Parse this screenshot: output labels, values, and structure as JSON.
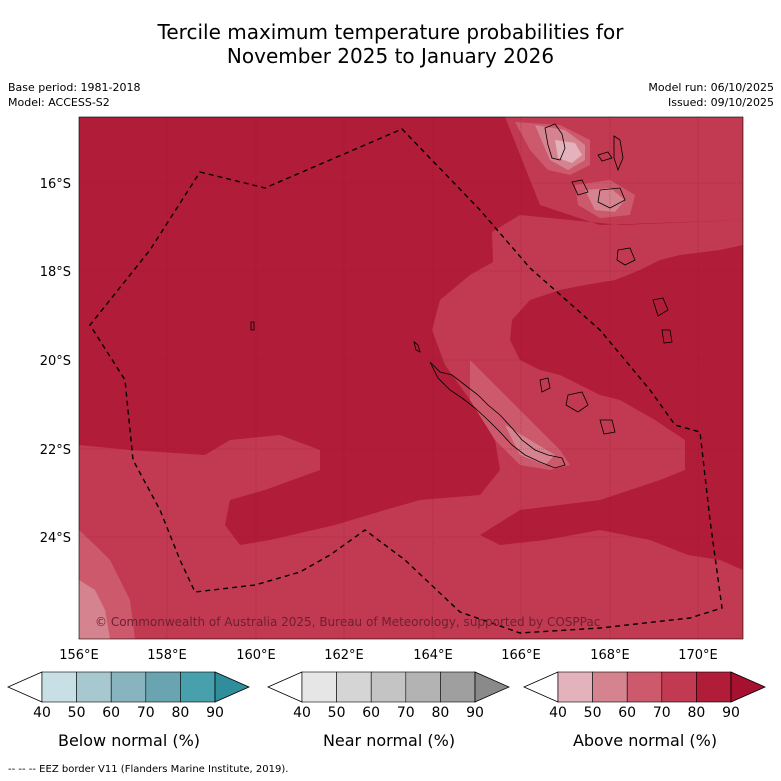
{
  "title_line1": "Tercile maximum temperature probabilities for",
  "title_line2": "November 2025 to January 2026",
  "meta": {
    "base_period": "Base period: 1981-2018",
    "model": "Model: ACCESS-S2",
    "model_run": "Model run: 06/10/2025",
    "issued": "Issued: 09/10/2025"
  },
  "map": {
    "lat_labels": [
      "16°S",
      "18°S",
      "20°S",
      "22°S",
      "24°S"
    ],
    "lon_labels": [
      "156°E",
      "158°E",
      "160°E",
      "162°E",
      "164°E",
      "166°E",
      "168°E",
      "170°E"
    ],
    "copyright": "© Commonwealth of Australia 2025, Bureau of Meteorology, supported by COSPPac",
    "colors": {
      "above_90": "#b11c38",
      "above_80": "#c13a52",
      "above_70": "#cc5a6c",
      "above_60": "#d68390",
      "above_50": "#e3b2bb"
    }
  },
  "colorbars": [
    {
      "label": "Below normal (%)",
      "ticks": [
        "40",
        "50",
        "60",
        "70",
        "80",
        "90"
      ],
      "colors": [
        "#ffffff",
        "#c8e0e5",
        "#a7c8ce",
        "#88b4bf",
        "#6aa4b1",
        "#48a0ad",
        "#2f8d9c"
      ]
    },
    {
      "label": "Near normal (%)",
      "ticks": [
        "40",
        "50",
        "60",
        "70",
        "80",
        "90"
      ],
      "colors": [
        "#ffffff",
        "#e6e6e6",
        "#d5d5d5",
        "#c4c4c4",
        "#b3b3b3",
        "#9f9f9f",
        "#8a8a8a"
      ]
    },
    {
      "label": "Above normal (%)",
      "ticks": [
        "40",
        "50",
        "60",
        "70",
        "80",
        "90"
      ],
      "colors": [
        "#ffffff",
        "#e3b2bb",
        "#d68390",
        "#cc5a6c",
        "#c13a52",
        "#b11c38",
        "#a5112e"
      ]
    }
  ],
  "footer": "-- -- -- EEZ border V11 (Flanders Marine Institute, 2019)."
}
